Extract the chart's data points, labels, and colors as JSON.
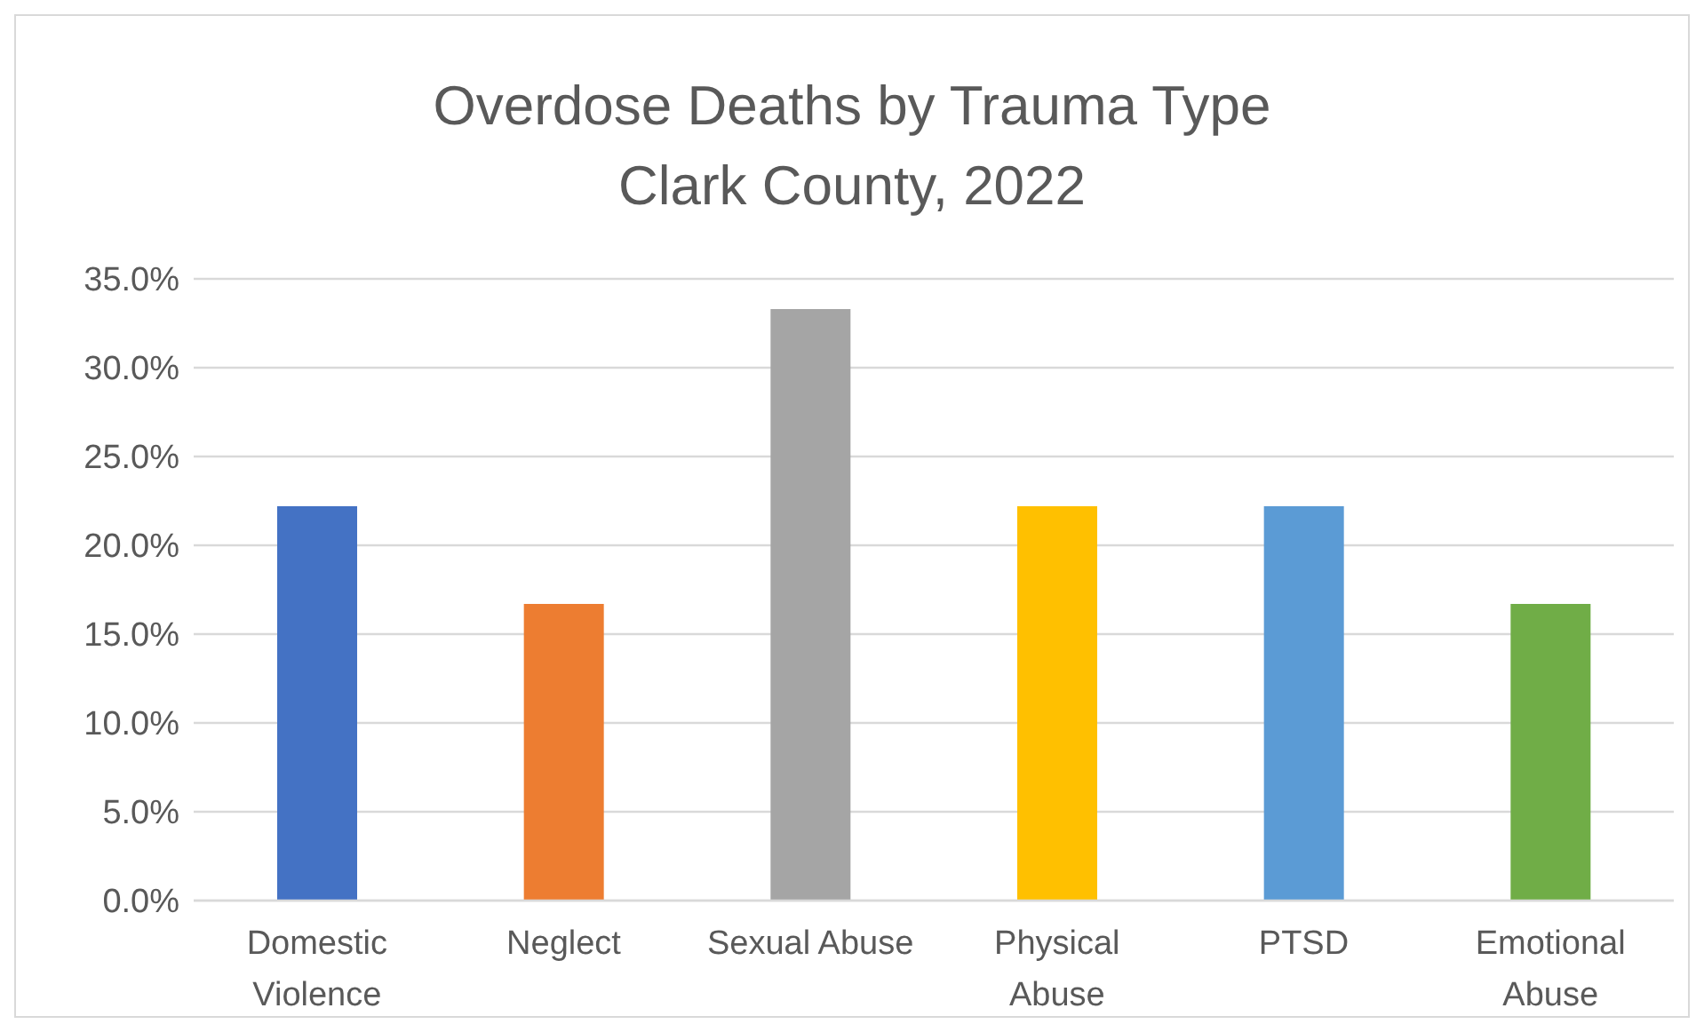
{
  "chart_data": {
    "type": "bar",
    "title": "Overdose Deaths by Trauma Type\nClark County, 2022",
    "categories": [
      "Domestic Violence",
      "Neglect",
      "Sexual Abuse",
      "Physical Abuse",
      "PTSD",
      "Emotional Abuse"
    ],
    "values": [
      22.2,
      16.7,
      33.3,
      22.2,
      22.2,
      16.7
    ],
    "colors": [
      "#4472c4",
      "#ed7d31",
      "#a5a5a5",
      "#ffc000",
      "#5b9bd5",
      "#70ad47"
    ],
    "ylim": [
      0,
      35
    ],
    "yticks": [
      {
        "value": 0,
        "label": "0.0%"
      },
      {
        "value": 5,
        "label": "5.0%"
      },
      {
        "value": 10,
        "label": "10.0%"
      },
      {
        "value": 15,
        "label": "15.0%"
      },
      {
        "value": 20,
        "label": "20.0%"
      },
      {
        "value": 25,
        "label": "25.0%"
      },
      {
        "value": 30,
        "label": "30.0%"
      },
      {
        "value": 35,
        "label": "35.0%"
      }
    ],
    "grid": "y"
  }
}
